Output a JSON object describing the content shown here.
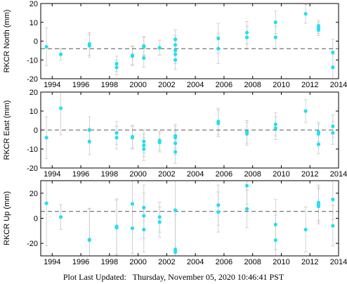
{
  "footer": {
    "label": "Plot Last Updated:",
    "timestamp": "Thursday, November 05, 2020 10:46:41 PST"
  },
  "colors": {
    "point": "#20e0f0",
    "errorbar": "#c8c8c8",
    "reference_line": "#555555",
    "axis": "#000000"
  },
  "chart_data": [
    {
      "type": "scatter",
      "ylabel": "RKCR North (mm)",
      "xlabel": "",
      "xlim": [
        1993.2,
        2014
      ],
      "ylim": [
        -20,
        20
      ],
      "xticks": [
        1994,
        1996,
        1998,
        2000,
        2002,
        2004,
        2006,
        2008,
        2010,
        2012,
        2014
      ],
      "yticks": [
        -20,
        -10,
        0,
        10,
        20
      ],
      "reference_level": -4,
      "points": [
        {
          "x": 1993.6,
          "y": -3,
          "err": 10
        },
        {
          "x": 1994.6,
          "y": -7,
          "err": 3
        },
        {
          "x": 1996.6,
          "y": -1.5,
          "err": 6
        },
        {
          "x": 1996.6,
          "y": -2.5,
          "err": 6
        },
        {
          "x": 1998.5,
          "y": -12,
          "err": 4
        },
        {
          "x": 1998.5,
          "y": -14,
          "err": 4
        },
        {
          "x": 1999.6,
          "y": -7.5,
          "err": 5
        },
        {
          "x": 1999.6,
          "y": -8,
          "err": 5
        },
        {
          "x": 2000.4,
          "y": -2.5,
          "err": 5
        },
        {
          "x": 2000.4,
          "y": -3,
          "err": 5
        },
        {
          "x": 2000.4,
          "y": -9,
          "err": 5
        },
        {
          "x": 2001.5,
          "y": -3.5,
          "err": 4
        },
        {
          "x": 2002.6,
          "y": 1,
          "err": 5
        },
        {
          "x": 2002.6,
          "y": -2,
          "err": 5
        },
        {
          "x": 2002.6,
          "y": -5,
          "err": 5
        },
        {
          "x": 2002.6,
          "y": -7,
          "err": 5
        },
        {
          "x": 2002.6,
          "y": -10,
          "err": 5
        },
        {
          "x": 2005.6,
          "y": 1.5,
          "err": 8
        },
        {
          "x": 2005.6,
          "y": -4,
          "err": 8
        },
        {
          "x": 2007.6,
          "y": 4.5,
          "err": 6
        },
        {
          "x": 2007.6,
          "y": 2,
          "err": 6
        },
        {
          "x": 2009.6,
          "y": 10,
          "err": 6
        },
        {
          "x": 2009.6,
          "y": 2,
          "err": 6
        },
        {
          "x": 2011.7,
          "y": 14.5,
          "err": 5
        },
        {
          "x": 2012.6,
          "y": 8,
          "err": 3
        },
        {
          "x": 2012.6,
          "y": 7,
          "err": 3
        },
        {
          "x": 2012.6,
          "y": 6,
          "err": 3
        },
        {
          "x": 2013.6,
          "y": -6,
          "err": 7
        },
        {
          "x": 2013.6,
          "y": -14,
          "err": 7
        }
      ]
    },
    {
      "type": "scatter",
      "ylabel": "RKCR East (mm)",
      "xlabel": "",
      "xlim": [
        1993.2,
        2014
      ],
      "ylim": [
        -20,
        20
      ],
      "xticks": [
        1994,
        1996,
        1998,
        2000,
        2002,
        2004,
        2006,
        2008,
        2010,
        2012,
        2014
      ],
      "yticks": [
        -20,
        -10,
        0,
        10,
        20
      ],
      "reference_level": 0,
      "points": [
        {
          "x": 1993.6,
          "y": -4,
          "err": 11
        },
        {
          "x": 1994.6,
          "y": 11.5,
          "err": 14
        },
        {
          "x": 1996.6,
          "y": 0,
          "err": 7
        },
        {
          "x": 1996.6,
          "y": -6,
          "err": 7
        },
        {
          "x": 1998.5,
          "y": -1.5,
          "err": 6
        },
        {
          "x": 1998.5,
          "y": -4,
          "err": 6
        },
        {
          "x": 1999.6,
          "y": -3.5,
          "err": 6
        },
        {
          "x": 1999.6,
          "y": -4,
          "err": 6
        },
        {
          "x": 2000.4,
          "y": -6,
          "err": 6
        },
        {
          "x": 2000.4,
          "y": -8,
          "err": 6
        },
        {
          "x": 2000.4,
          "y": -10,
          "err": 6
        },
        {
          "x": 2001.5,
          "y": -5.5,
          "err": 5
        },
        {
          "x": 2001.5,
          "y": -6.5,
          "err": 5
        },
        {
          "x": 2002.6,
          "y": -3,
          "err": 6
        },
        {
          "x": 2002.6,
          "y": -4,
          "err": 6
        },
        {
          "x": 2002.6,
          "y": -7,
          "err": 6
        },
        {
          "x": 2002.6,
          "y": -11.5,
          "err": 6
        },
        {
          "x": 2005.6,
          "y": 4.5,
          "err": 7
        },
        {
          "x": 2005.6,
          "y": 3.5,
          "err": 7
        },
        {
          "x": 2007.6,
          "y": -1,
          "err": 6
        },
        {
          "x": 2007.6,
          "y": -2,
          "err": 6
        },
        {
          "x": 2009.6,
          "y": 3,
          "err": 6
        },
        {
          "x": 2009.6,
          "y": 1,
          "err": 6
        },
        {
          "x": 2011.7,
          "y": 10,
          "err": 6
        },
        {
          "x": 2012.6,
          "y": -1,
          "err": 5
        },
        {
          "x": 2012.6,
          "y": -2,
          "err": 5
        },
        {
          "x": 2012.6,
          "y": -7.5,
          "err": 5
        },
        {
          "x": 2013.6,
          "y": 2,
          "err": 6
        },
        {
          "x": 2013.6,
          "y": -1.5,
          "err": 6
        }
      ]
    },
    {
      "type": "scatter",
      "ylabel": "RKCR Up (mm)",
      "xlabel": "",
      "xlim": [
        1993.2,
        2014
      ],
      "ylim": [
        -30,
        30
      ],
      "xticks": [
        1994,
        1996,
        1998,
        2000,
        2002,
        2004,
        2006,
        2008,
        2010,
        2012,
        2014
      ],
      "yticks": [
        -20,
        0,
        20
      ],
      "reference_level": 5.5,
      "points": [
        {
          "x": 1993.6,
          "y": 12,
          "err": 34
        },
        {
          "x": 1994.6,
          "y": 1,
          "err": 10
        },
        {
          "x": 1996.6,
          "y": -17,
          "err": 25
        },
        {
          "x": 1996.6,
          "y": -17.5,
          "err": 25
        },
        {
          "x": 1998.5,
          "y": -6.5,
          "err": 22
        },
        {
          "x": 1998.5,
          "y": -7.5,
          "err": 22
        },
        {
          "x": 1999.6,
          "y": 11.5,
          "err": 20
        },
        {
          "x": 1999.6,
          "y": -8,
          "err": 20
        },
        {
          "x": 2000.4,
          "y": 8.5,
          "err": 18
        },
        {
          "x": 2000.4,
          "y": 2,
          "err": 18
        },
        {
          "x": 2000.4,
          "y": -9,
          "err": 18
        },
        {
          "x": 2001.5,
          "y": 1,
          "err": 12
        },
        {
          "x": 2001.5,
          "y": -3,
          "err": 12
        },
        {
          "x": 2002.6,
          "y": 6.5,
          "err": 30
        },
        {
          "x": 2002.6,
          "y": -25,
          "err": 30
        },
        {
          "x": 2002.6,
          "y": -27,
          "err": 30
        },
        {
          "x": 2005.6,
          "y": 10.5,
          "err": 16
        },
        {
          "x": 2005.6,
          "y": 5,
          "err": 16
        },
        {
          "x": 2007.6,
          "y": 26,
          "err": 15
        },
        {
          "x": 2007.6,
          "y": 7.5,
          "err": 15
        },
        {
          "x": 2009.6,
          "y": -5,
          "err": 20
        },
        {
          "x": 2009.6,
          "y": -17.5,
          "err": 20
        },
        {
          "x": 2011.7,
          "y": -9,
          "err": 18
        },
        {
          "x": 2012.6,
          "y": 12.5,
          "err": 14
        },
        {
          "x": 2012.6,
          "y": 11,
          "err": 14
        },
        {
          "x": 2012.6,
          "y": 9.5,
          "err": 14
        },
        {
          "x": 2013.6,
          "y": 15,
          "err": 16
        },
        {
          "x": 2013.6,
          "y": -6,
          "err": 16
        }
      ]
    }
  ]
}
